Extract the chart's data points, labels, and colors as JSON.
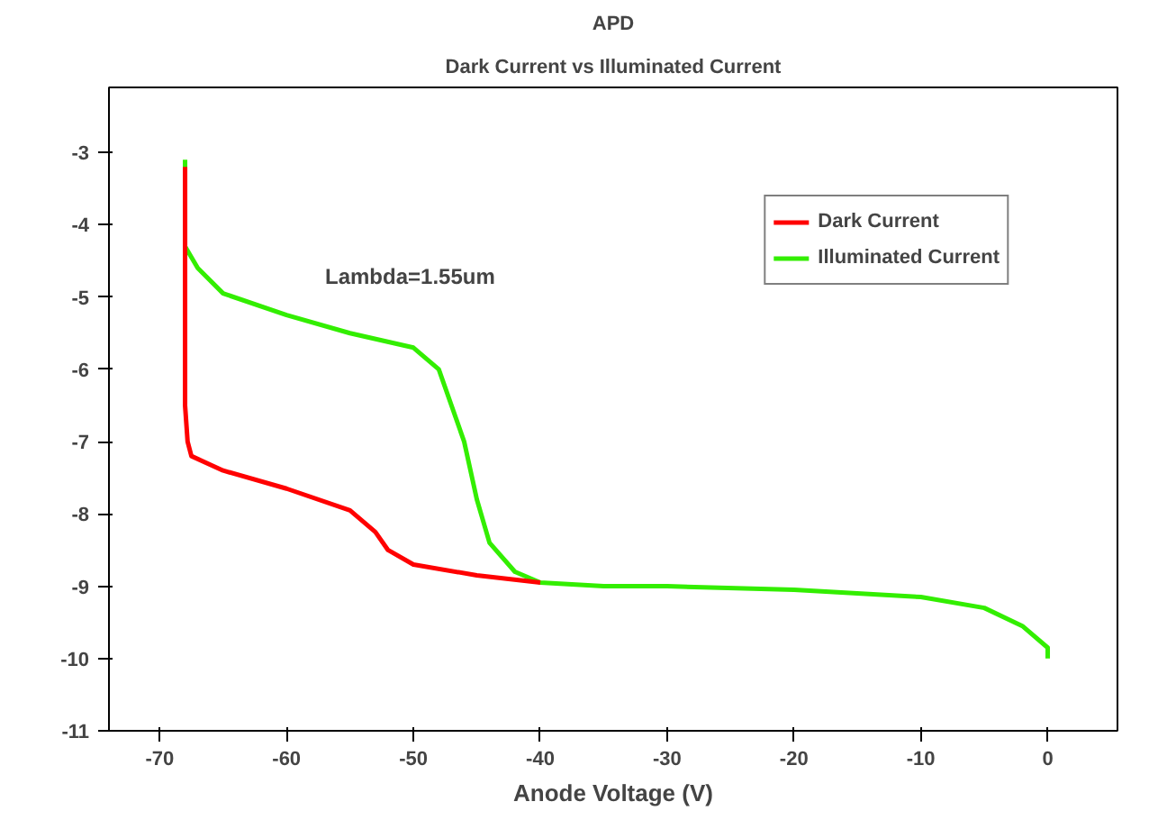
{
  "chart_data": {
    "type": "line",
    "title": "APD",
    "subtitle": "Dark Current vs Illuminated Current",
    "xlabel": "Anode Voltage (V)",
    "xlim": [
      -74,
      5.5
    ],
    "ylim": [
      -11,
      -2.1
    ],
    "xticks": [
      -70,
      -60,
      -50,
      -40,
      -30,
      -20,
      -10,
      0
    ],
    "yticks": [
      -11,
      -10,
      -9,
      -8,
      -7,
      -6,
      -5,
      -4,
      -3
    ],
    "grid": false,
    "legend": "top right",
    "marker": "none",
    "line_style": "solid",
    "annotations": [
      "Lambda=1.55um"
    ],
    "series": [
      {
        "name": "Dark Current",
        "color": "#ff0000",
        "x": [
          -68,
          -68,
          -67.8,
          -67.5,
          -65,
          -60,
          -55,
          -53,
          -52,
          -50,
          -45,
          -40
        ],
        "values": [
          -3.2,
          -6.5,
          -7.0,
          -7.2,
          -7.4,
          -7.65,
          -7.95,
          -8.25,
          -8.5,
          -8.7,
          -8.85,
          -8.95
        ]
      },
      {
        "name": "Illuminated Current",
        "color": "#33ee00",
        "x": [
          -68,
          -68,
          -67,
          -65,
          -60,
          -55,
          -50,
          -48,
          -46,
          -45,
          -44,
          -42,
          -40,
          -35,
          -30,
          -20,
          -10,
          -5,
          -2,
          0,
          0
        ],
        "values": [
          -3.1,
          -4.3,
          -4.6,
          -4.95,
          -5.25,
          -5.5,
          -5.7,
          -6.0,
          -7.0,
          -7.8,
          -8.4,
          -8.8,
          -8.95,
          -9.0,
          -9.0,
          -9.05,
          -9.15,
          -9.3,
          -9.55,
          -9.85,
          -10.0
        ]
      }
    ]
  }
}
